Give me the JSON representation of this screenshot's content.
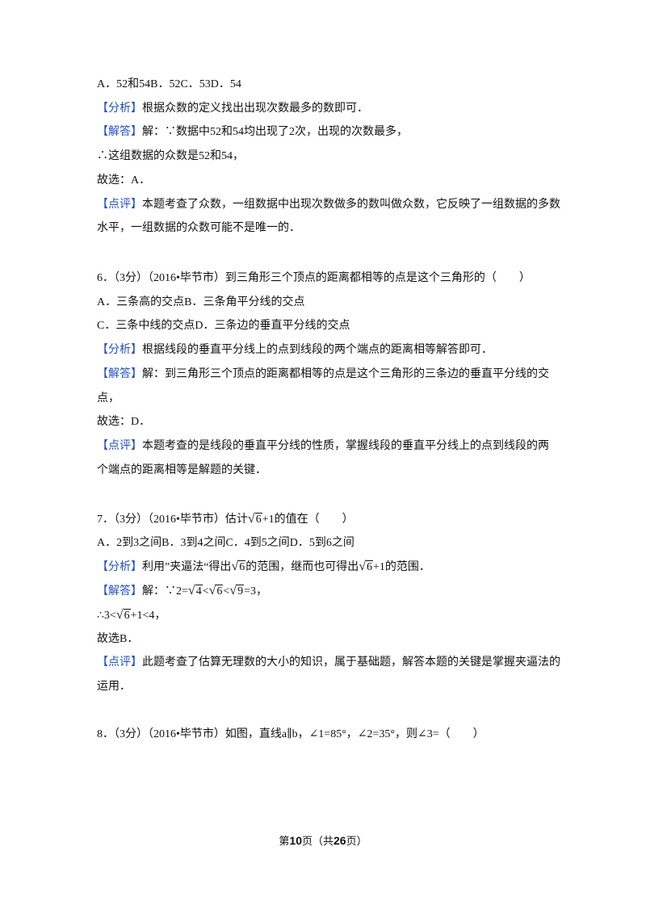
{
  "blocks": [
    {
      "lines": [
        [
          "A．52和54B．52C．53D．54"
        ],
        [
          {
            "tag": "【分析】"
          },
          "根据众数的定义找出出现次数最多的数即可．"
        ],
        [
          {
            "tag": "【解答】"
          },
          "解：∵数据中52和54均出现了2次，出现的次数最多，"
        ],
        [
          "∴这组数据的众数是52和54，"
        ],
        [
          "故选：A．"
        ],
        [
          {
            "tag": "【点评】"
          },
          "本题考查了众数，一组数据中出现次数做多的数叫做众数，它反映了一组数据的多数"
        ],
        [
          "水平，一组数据的众数可能不是唯一的．"
        ]
      ]
    },
    {
      "lines": [
        [
          "6．（3分）（2016•毕节市）到三角形三个顶点的距离都相等的点是这个三角形的（　　）"
        ],
        [
          "A．三条高的交点B．三条角平分线的交点"
        ],
        [
          "C．三条中线的交点D．三条边的垂直平分线的交点"
        ],
        [
          {
            "tag": "【分析】"
          },
          "根据线段的垂直平分线上的点到线段的两个端点的距离相等解答即可．"
        ],
        [
          {
            "tag": "【解答】"
          },
          "解：到三角形三个顶点的距离都相等的点是这个三角形的三条边的垂直平分线的交"
        ],
        [
          "点，"
        ],
        [
          "故选：D．"
        ],
        [
          {
            "tag": "【点评】"
          },
          "本题考查的是线段的垂直平分线的性质，掌握线段的垂直平分线上的点到线段的两"
        ],
        [
          "个端点的距离相等是解题的关键．"
        ]
      ]
    },
    {
      "lines": [
        [
          "7．（3分）（2016•毕节市）估计",
          {
            "sqrt": "6"
          },
          "+1的值在（　　）"
        ],
        [
          "A．2到3之间B．3到4之间C．4到5之间D．5到6之间"
        ],
        [
          {
            "tag": "【分析】"
          },
          "利用”夹逼法“得出",
          {
            "sqrt": "6"
          },
          "的范围，继而也可得出",
          {
            "sqrt": "6"
          },
          "+1的范围．"
        ],
        [
          {
            "tag": "【解答】"
          },
          "解：∵2=",
          {
            "sqrt": "4"
          },
          "<",
          {
            "sqrt": "6"
          },
          "<",
          {
            "sqrt": "9"
          },
          "=3，"
        ],
        [
          "∴3<",
          {
            "sqrt": "6"
          },
          "+1<4，"
        ],
        [
          "故选B．"
        ],
        [
          {
            "tag": "【点评】"
          },
          "此题考查了估算无理数的大小的知识，属于基础题，解答本题的关键是掌握夹逼法的"
        ],
        [
          "运用．"
        ]
      ]
    },
    {
      "lines": [
        [
          "8．（3分）（2016•毕节市）如图，直线a∥b，∠1=85°，∠2=35°，则∠3=（　　）"
        ]
      ]
    }
  ],
  "footer": [
    "第",
    {
      "bold": "10"
    },
    "页（共",
    {
      "bold": "26"
    },
    "页）"
  ]
}
